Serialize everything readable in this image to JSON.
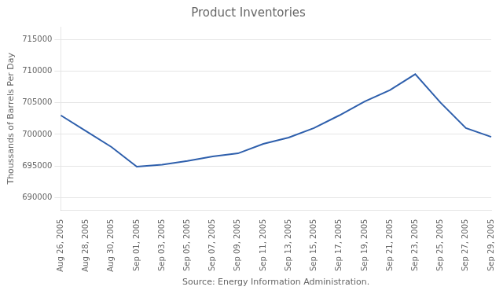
{
  "chart_data": {
    "type": "line",
    "title": "Product Inventories",
    "xlabel": "Source: Energy Information Administration.",
    "ylabel": "Thoussands of Barrels Per Day",
    "categories": [
      "Aug 26, 2005",
      "Aug 28, 2005",
      "Aug 30, 2005",
      "Sep 01, 2005",
      "Sep 03, 2005",
      "Sep 05, 2005",
      "Sep 07, 2005",
      "Sep 09, 2005",
      "Sep 11, 2005",
      "Sep 13, 2005",
      "Sep 15, 2005",
      "Sep 17, 2005",
      "Sep 19, 2005",
      "Sep 21, 2005",
      "Sep 23, 2005",
      "Sep 25, 2005",
      "Sep 27, 2005",
      "Sep 29, 2005"
    ],
    "values": [
      703000,
      700500,
      698000,
      694900,
      695200,
      695800,
      696500,
      697000,
      698500,
      699500,
      701000,
      703000,
      705200,
      707000,
      709500,
      705000,
      701000,
      699600
    ],
    "color": "#2E5FAC",
    "ylim": [
      688000,
      717000
    ],
    "yticks": [
      690000,
      695000,
      700000,
      705000,
      710000,
      715000
    ],
    "grid": true
  }
}
